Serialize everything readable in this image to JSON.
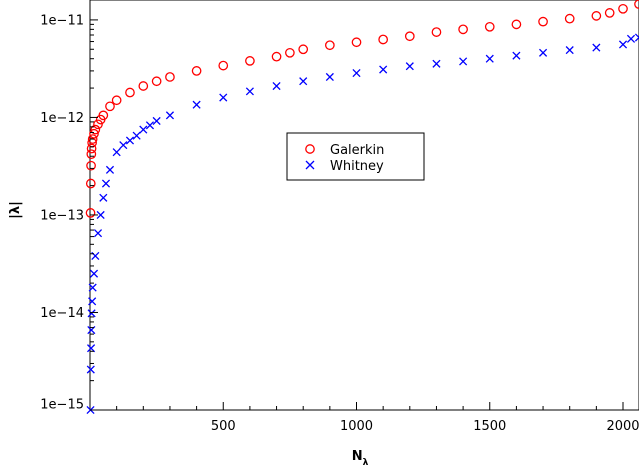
{
  "chart_data": {
    "type": "scatter",
    "xlabel": "N",
    "xlabel_subscript": "λ",
    "ylabel": "|λ|",
    "xlim": [
      0,
      2060
    ],
    "ylim": [
      1e-15,
      1.6e-11
    ],
    "yscale": "log",
    "x_ticks": [
      500,
      1000,
      1500,
      2000
    ],
    "x_tick_labels": [
      "500",
      "1000",
      "1500",
      "2000"
    ],
    "y_ticks": [
      1e-15,
      1e-14,
      1e-13,
      1e-12,
      1e-11
    ],
    "y_tick_labels": [
      "1e−15",
      "1e−14",
      "1e−13",
      "1e−12",
      "1e−11"
    ],
    "legend_position": "center",
    "series": [
      {
        "name": "Galerkin",
        "marker": "circle",
        "color": "#ff0000",
        "points": [
          [
            2,
            1.05e-13
          ],
          [
            3,
            2.1e-13
          ],
          [
            4,
            3.2e-13
          ],
          [
            5,
            4.2e-13
          ],
          [
            6,
            4.8e-13
          ],
          [
            8,
            5.5e-13
          ],
          [
            10,
            6e-13
          ],
          [
            15,
            6.8e-13
          ],
          [
            20,
            7.5e-13
          ],
          [
            30,
            8.5e-13
          ],
          [
            40,
            9.5e-13
          ],
          [
            50,
            1.05e-12
          ],
          [
            75,
            1.3e-12
          ],
          [
            100,
            1.5e-12
          ],
          [
            150,
            1.8e-12
          ],
          [
            200,
            2.1e-12
          ],
          [
            250,
            2.35e-12
          ],
          [
            300,
            2.6e-12
          ],
          [
            400,
            3e-12
          ],
          [
            500,
            3.4e-12
          ],
          [
            600,
            3.8e-12
          ],
          [
            700,
            4.2e-12
          ],
          [
            750,
            4.6e-12
          ],
          [
            800,
            5e-12
          ],
          [
            900,
            5.5e-12
          ],
          [
            1000,
            5.9e-12
          ],
          [
            1100,
            6.3e-12
          ],
          [
            1200,
            6.8e-12
          ],
          [
            1300,
            7.5e-12
          ],
          [
            1400,
            8e-12
          ],
          [
            1500,
            8.5e-12
          ],
          [
            1600,
            9e-12
          ],
          [
            1700,
            9.6e-12
          ],
          [
            1800,
            1.03e-11
          ],
          [
            1900,
            1.1e-11
          ],
          [
            1950,
            1.18e-11
          ],
          [
            2000,
            1.3e-11
          ],
          [
            2060,
            1.45e-11
          ]
        ]
      },
      {
        "name": "Whitney",
        "marker": "x",
        "color": "#0000ff",
        "points": [
          [
            2,
            1e-15
          ],
          [
            3,
            2.6e-15
          ],
          [
            4,
            4.3e-15
          ],
          [
            5,
            6.6e-15
          ],
          [
            6,
            9.8e-15
          ],
          [
            8,
            1.3e-14
          ],
          [
            10,
            1.8e-14
          ],
          [
            15,
            2.5e-14
          ],
          [
            20,
            3.8e-14
          ],
          [
            30,
            6.5e-14
          ],
          [
            40,
            1e-13
          ],
          [
            50,
            1.5e-13
          ],
          [
            60,
            2.1e-13
          ],
          [
            75,
            2.9e-13
          ],
          [
            100,
            4.4e-13
          ],
          [
            125,
            5.2e-13
          ],
          [
            150,
            5.8e-13
          ],
          [
            175,
            6.5e-13
          ],
          [
            200,
            7.5e-13
          ],
          [
            225,
            8.3e-13
          ],
          [
            250,
            9.2e-13
          ],
          [
            300,
            1.05e-12
          ],
          [
            400,
            1.35e-12
          ],
          [
            500,
            1.6e-12
          ],
          [
            600,
            1.85e-12
          ],
          [
            700,
            2.1e-12
          ],
          [
            800,
            2.35e-12
          ],
          [
            900,
            2.6e-12
          ],
          [
            1000,
            2.85e-12
          ],
          [
            1100,
            3.1e-12
          ],
          [
            1200,
            3.35e-12
          ],
          [
            1300,
            3.55e-12
          ],
          [
            1400,
            3.75e-12
          ],
          [
            1500,
            4e-12
          ],
          [
            1600,
            4.3e-12
          ],
          [
            1700,
            4.6e-12
          ],
          [
            1800,
            4.9e-12
          ],
          [
            1900,
            5.2e-12
          ],
          [
            2000,
            5.6e-12
          ],
          [
            2030,
            6.4e-12
          ],
          [
            2060,
            6.6e-12
          ]
        ]
      }
    ]
  }
}
